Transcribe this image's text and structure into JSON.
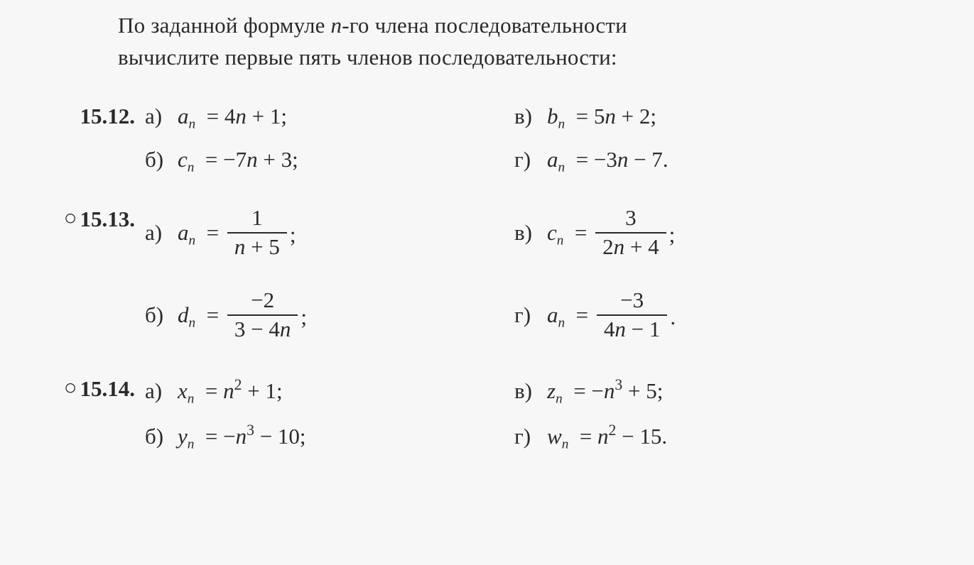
{
  "intro": {
    "line1": "По заданной формуле n-го члена последовательности",
    "line2": "вычислите первые пять членов последовательности:"
  },
  "problems": [
    {
      "number": "15.12.",
      "circle": false,
      "rows": [
        {
          "tall": false,
          "left": {
            "label": "а)",
            "var": "a",
            "rhs": "4n + 1",
            "punct": ";"
          },
          "right": {
            "label": "в)",
            "var": "b",
            "rhs": "5n + 2",
            "punct": ";"
          }
        },
        {
          "tall": false,
          "left": {
            "label": "б)",
            "var": "c",
            "rhs": "−7n + 3",
            "punct": ";"
          },
          "right": {
            "label": "г)",
            "var": "a",
            "rhs": "−3n − 7",
            "punct": "."
          }
        }
      ]
    },
    {
      "number": "15.13.",
      "circle": true,
      "rows": [
        {
          "tall": true,
          "left": {
            "label": "а)",
            "var": "a",
            "frac": {
              "num": "1",
              "den": "n + 5"
            },
            "punct": ";"
          },
          "right": {
            "label": "в)",
            "var": "c",
            "frac": {
              "num": "3",
              "den": "2n + 4"
            },
            "punct": ";"
          }
        },
        {
          "tall": false,
          "left": {
            "label": "б)",
            "var": "d",
            "frac": {
              "num": "−2",
              "den": "3 − 4n"
            },
            "punct": ";"
          },
          "right": {
            "label": "г)",
            "var": "a",
            "frac": {
              "num": "−3",
              "den": "4n − 1"
            },
            "punct": "."
          }
        }
      ]
    },
    {
      "number": "15.14.",
      "circle": true,
      "rows": [
        {
          "tall": false,
          "left": {
            "label": "а)",
            "var": "x",
            "poly": {
              "base": "n",
              "exp": "2",
              "tail": " + 1"
            },
            "punct": ";"
          },
          "right": {
            "label": "в)",
            "var": "z",
            "poly": {
              "pre": "−",
              "base": "n",
              "exp": "3",
              "tail": " + 5"
            },
            "punct": ";"
          }
        },
        {
          "tall": false,
          "left": {
            "label": "б)",
            "var": "y",
            "poly": {
              "pre": "−",
              "base": "n",
              "exp": "3",
              "tail": " − 10"
            },
            "punct": ";"
          },
          "right": {
            "label": "г)",
            "var": "w",
            "poly": {
              "base": "n",
              "exp": "2",
              "tail": " − 15"
            },
            "punct": "."
          }
        }
      ]
    }
  ],
  "style": {
    "font_family": "Georgia, Times New Roman, serif",
    "body_fontsize_pt": 23,
    "text_color": "#2a2a2a",
    "background_color": "#f7f7f8",
    "circle_glyph": "○",
    "italic_math": true
  }
}
